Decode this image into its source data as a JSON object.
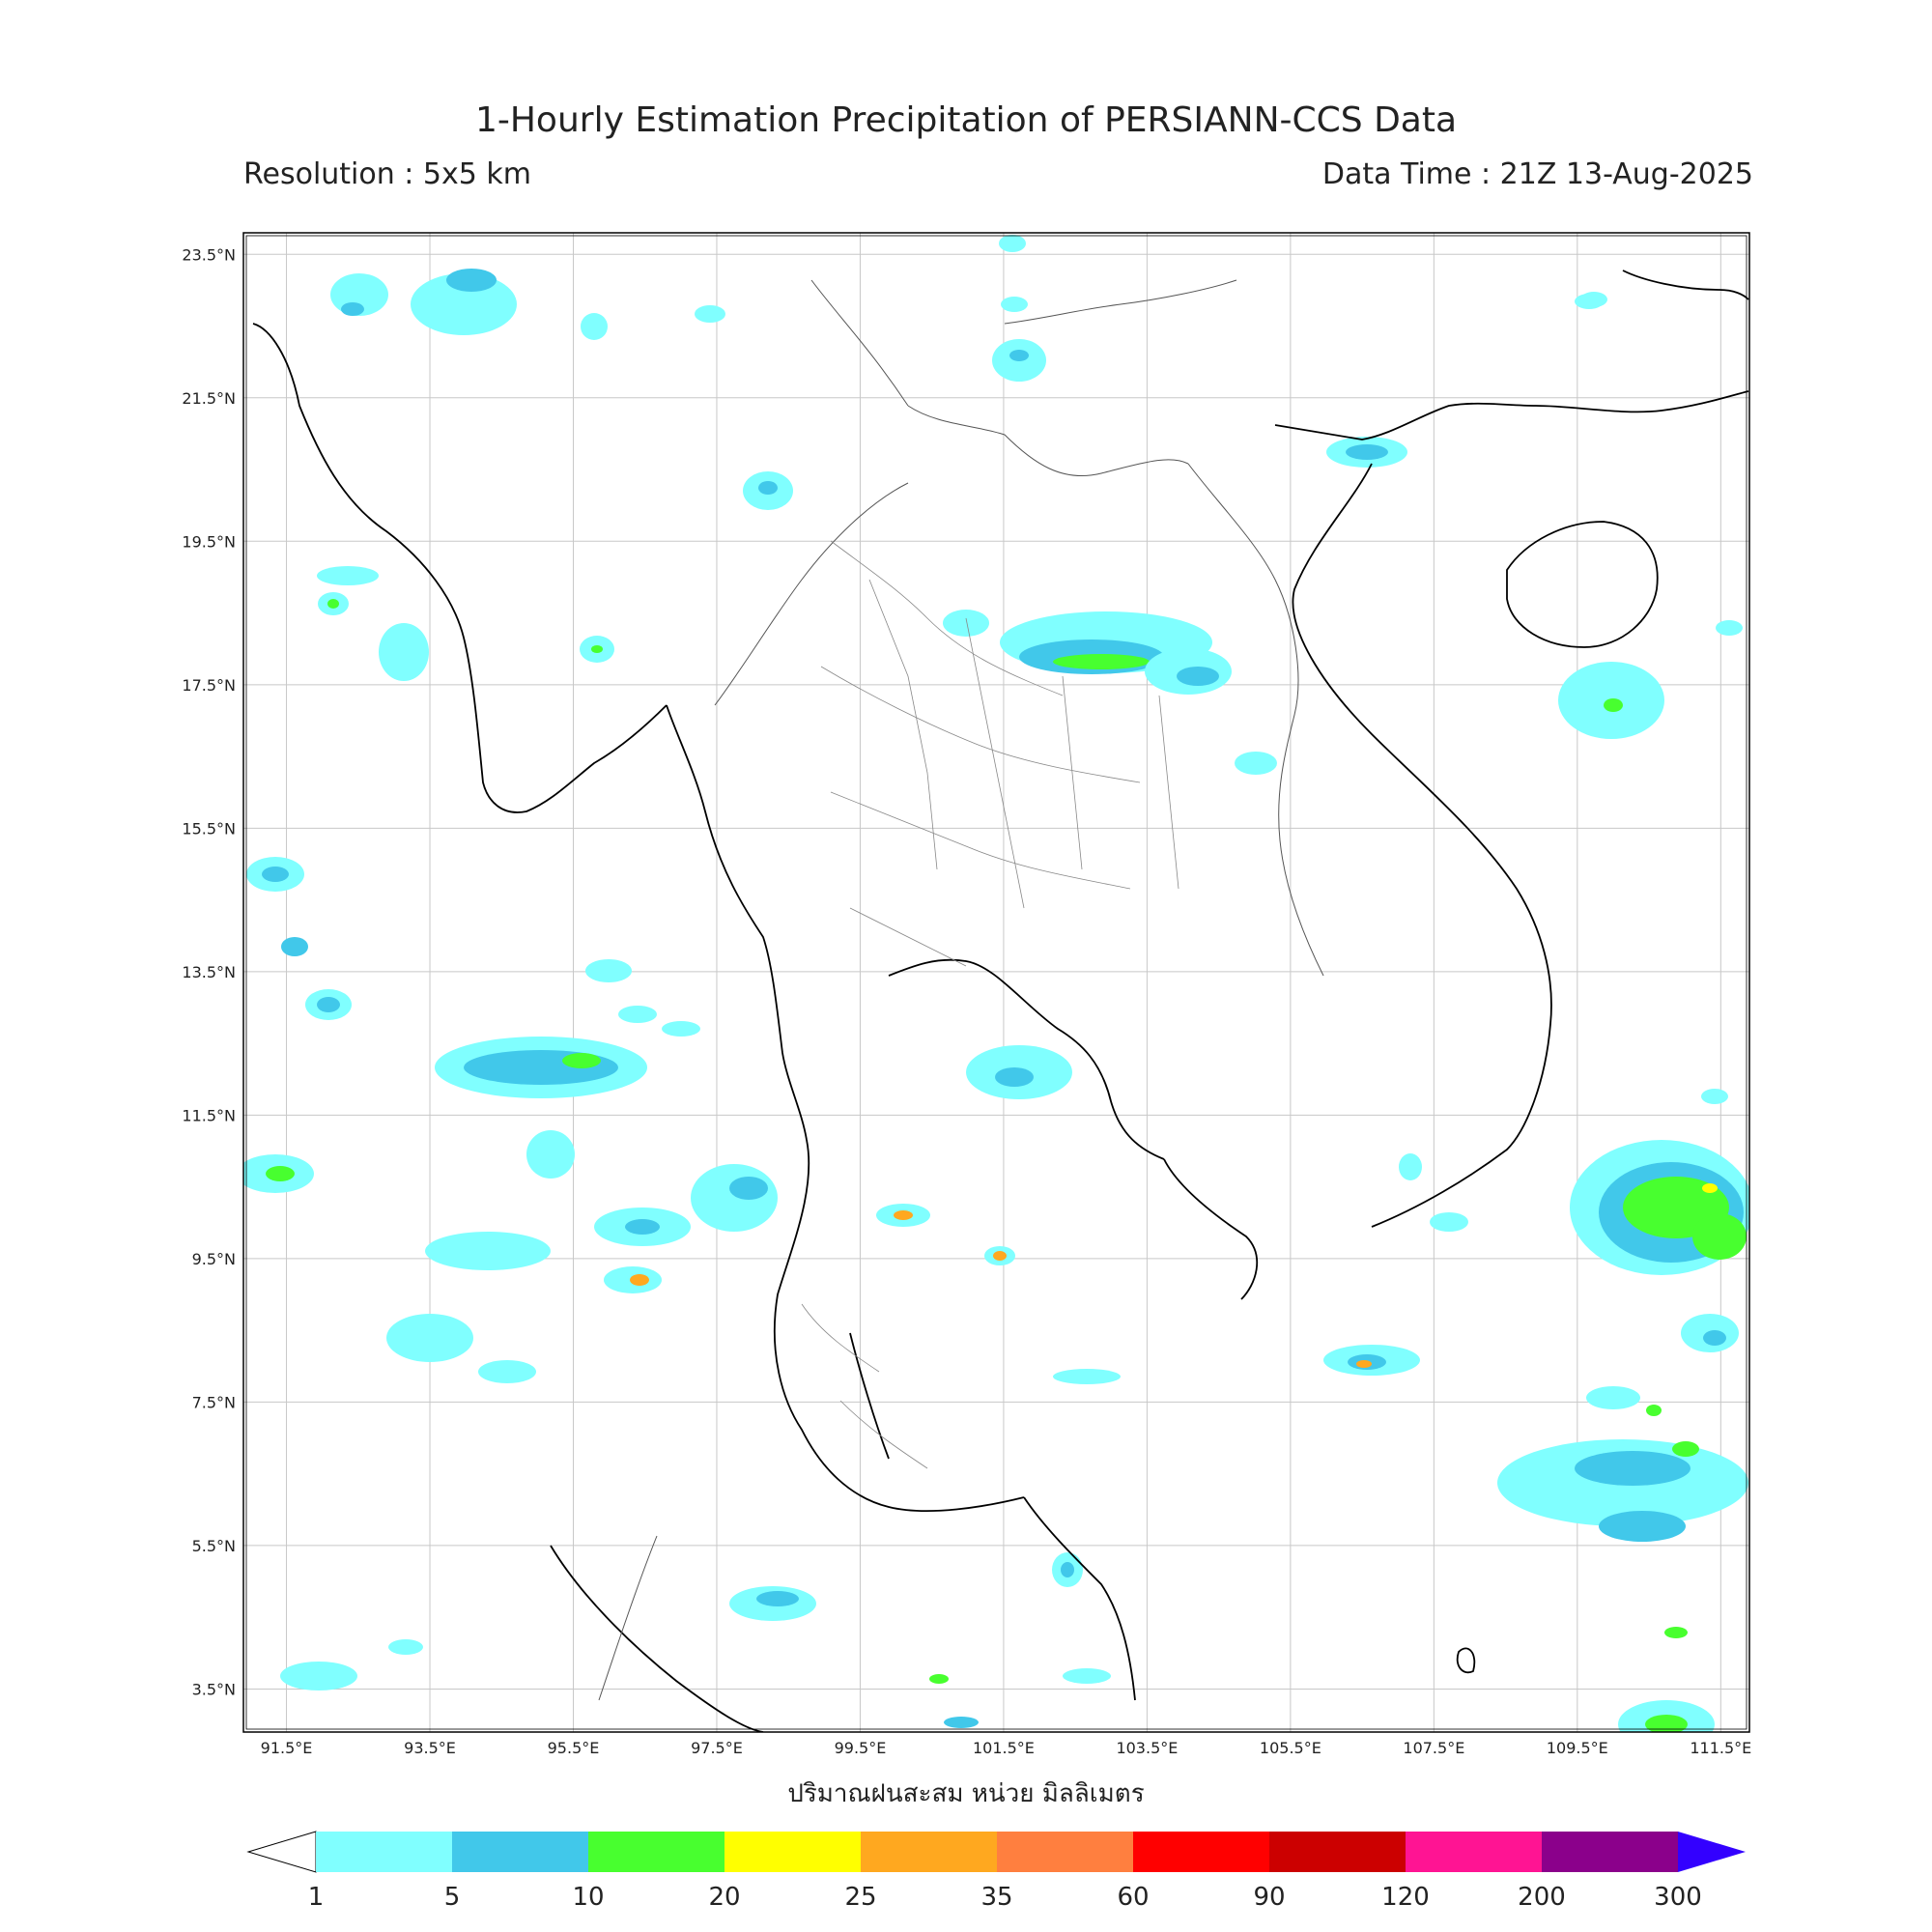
{
  "header": {
    "title": "1-Hourly Estimation Precipitation of PERSIANN-CCS Data",
    "resolution": "Resolution : 5x5 km",
    "data_time": "Data Time : 21Z 13-Aug-2025"
  },
  "map": {
    "lon_range": [
      90.9,
      111.9
    ],
    "lat_range": [
      2.9,
      23.8
    ],
    "lon_ticks": [
      "91.5°E",
      "93.5°E",
      "95.5°E",
      "97.5°E",
      "99.5°E",
      "101.5°E",
      "103.5°E",
      "105.5°E",
      "107.5°E",
      "109.5°E",
      "111.5°E"
    ],
    "lat_ticks": [
      "23.5°N",
      "21.5°N",
      "19.5°N",
      "17.5°N",
      "15.5°N",
      "13.5°N",
      "11.5°N",
      "9.5°N",
      "7.5°N",
      "5.5°N",
      "3.5°N"
    ],
    "grid": true,
    "xlabel": "ปริมาณฝนสะสม หน่วย มิลลิเมตร"
  },
  "colorbar": {
    "levels": [
      "1",
      "5",
      "10",
      "20",
      "25",
      "35",
      "60",
      "90",
      "120",
      "200",
      "300"
    ],
    "colors": [
      "#80ffff",
      "#41c8ea",
      "#48ff2f",
      "#ffff00",
      "#ffa81f",
      "#ff7f3f",
      "#ff0000",
      "#cc0000",
      "#ff1493",
      "#8b008b"
    ],
    "under_color": "#ffffff",
    "over_color": "#3300ff"
  },
  "precip_colors": {
    "light": "#80ffff",
    "moderate": "#41c8ea",
    "heavy": "#48ff2f",
    "very_heavy": "#ffff00",
    "intense": "#ffa81f"
  }
}
